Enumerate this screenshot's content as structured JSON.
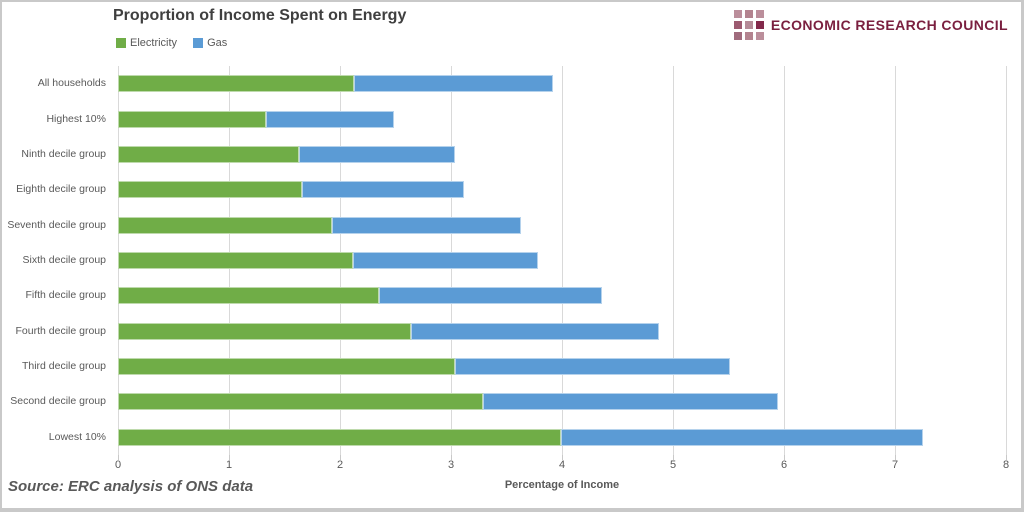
{
  "chart_data": {
    "type": "bar",
    "orientation": "horizontal-stacked",
    "title": "Proportion of Income Spent on Energy",
    "xlabel": "Percentage of Income",
    "xlim": [
      0,
      8
    ],
    "x_tick_step": 1,
    "grid": "vertical-on",
    "legend_position": "top-left",
    "categories": [
      "All households",
      "Highest 10%",
      "Ninth decile group",
      "Eighth decile group",
      "Seventh decile group",
      "Sixth decile group",
      "Fifth decile group",
      "Fourth decile group",
      "Third decile group",
      "Second decile group",
      "Lowest 10%"
    ],
    "series": [
      {
        "name": "Electricity",
        "color": "#70AD47",
        "values": [
          2.13,
          1.33,
          1.63,
          1.66,
          1.93,
          2.12,
          2.35,
          2.64,
          3.04,
          3.29,
          3.99
        ]
      },
      {
        "name": "Gas",
        "color": "#5B9BD5",
        "values": [
          1.79,
          1.16,
          1.41,
          1.46,
          1.7,
          1.66,
          2.01,
          2.23,
          2.47,
          2.66,
          3.26
        ]
      }
    ],
    "stacked_totals": [
      3.92,
      2.49,
      3.04,
      3.12,
      3.63,
      3.78,
      4.36,
      4.87,
      5.51,
      5.95,
      7.25
    ]
  },
  "logo": {
    "text": "ECONOMIC RESEARCH COUNCIL",
    "text_color": "#7a1f3f",
    "grid_colors": [
      "#bb8e9b",
      "#b3838f",
      "#bb8e9b",
      "#9c5a70",
      "#b48a97",
      "#83294b",
      "#a06b7d",
      "#b3838f",
      "#bb8e9b"
    ]
  },
  "source": {
    "text": "Source: ERC analysis of ONS data"
  },
  "colors": {
    "gridline": "#d9d9d9",
    "title_text": "#3f3f3f",
    "axis_text": "#595959",
    "frame_border": "#c9c9c9"
  }
}
